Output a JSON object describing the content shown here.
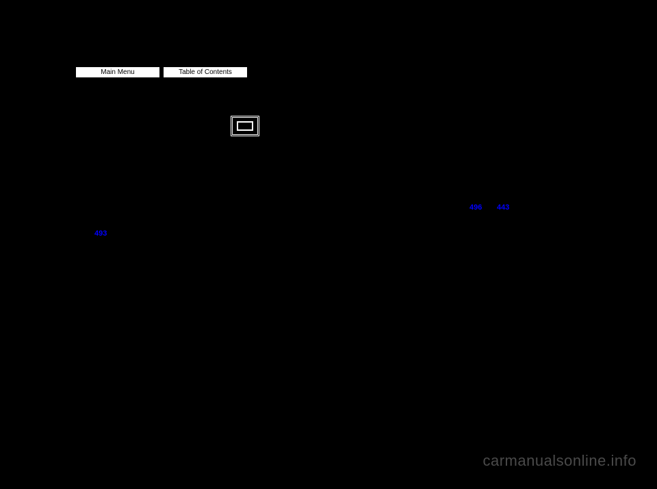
{
  "nav": {
    "main_menu": "Main Menu",
    "toc": "Table of Contents"
  },
  "links": {
    "page_ref_1": "496",
    "page_ref_2": "443",
    "page_ref_3": "493"
  },
  "watermark": "carmanualsonline.info",
  "colors": {
    "background": "#000000",
    "button_bg": "#ffffff",
    "button_text": "#000000",
    "link_color": "#0000ff",
    "watermark_color": "#4a4a4a",
    "icon_border": "#ffffff"
  }
}
